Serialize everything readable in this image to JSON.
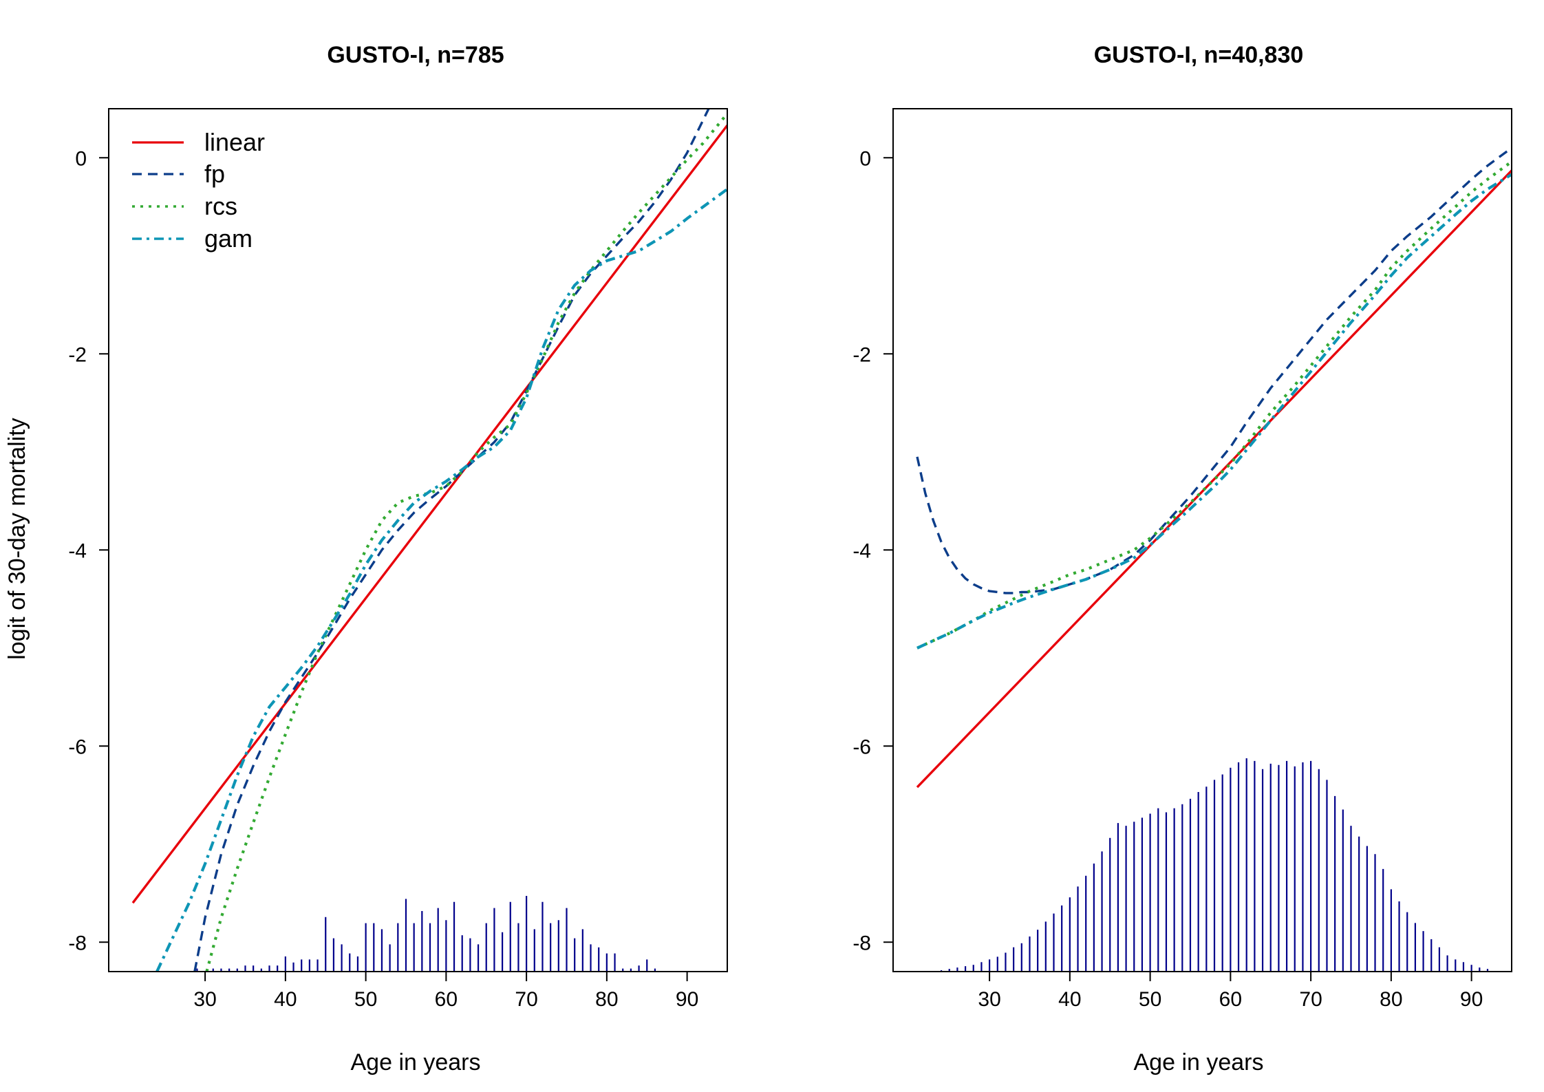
{
  "chart_data": [
    {
      "type": "line",
      "title": "GUSTO-I, n=785",
      "xlabel": "Age in years",
      "ylabel": "logit of 30-day mortality",
      "xlim": [
        18,
        95
      ],
      "ylim": [
        -8.3,
        0.5
      ],
      "xticks": [
        30,
        40,
        50,
        60,
        70,
        80,
        90
      ],
      "yticks": [
        0,
        -2,
        -4,
        -6,
        -8
      ],
      "grid": false,
      "legend": {
        "position": "top-left",
        "entries": [
          "linear",
          "fp",
          "rcs",
          "gam"
        ]
      },
      "series": [
        {
          "name": "linear",
          "color": "#e8000b",
          "dash": "solid",
          "x": [
            21,
            95
          ],
          "y": [
            -7.6,
            0.33
          ]
        },
        {
          "name": "fp",
          "color": "#0c3d8a",
          "dash": "dashed",
          "x": [
            28.7,
            30,
            32,
            34,
            36,
            38,
            40,
            42,
            44,
            46,
            48,
            50,
            52,
            54,
            56,
            58,
            60,
            62,
            64,
            66,
            68,
            70,
            72,
            74,
            76,
            78,
            80,
            82,
            84,
            86,
            88,
            90,
            92.8
          ],
          "y": [
            -8.3,
            -7.75,
            -7.1,
            -6.6,
            -6.2,
            -5.85,
            -5.55,
            -5.3,
            -5.05,
            -4.78,
            -4.5,
            -4.25,
            -4.0,
            -3.8,
            -3.62,
            -3.48,
            -3.35,
            -3.2,
            -3.05,
            -2.9,
            -2.7,
            -2.38,
            -2.05,
            -1.72,
            -1.4,
            -1.18,
            -1.0,
            -0.82,
            -0.65,
            -0.45,
            -0.22,
            0.05,
            0.52
          ]
        },
        {
          "name": "rcs",
          "color": "#33aa33",
          "dash": "dotted",
          "x": [
            30.2,
            32,
            34,
            36,
            38,
            40,
            42,
            44,
            46,
            48,
            50,
            52,
            54,
            56,
            58,
            60,
            62,
            64,
            66,
            68,
            70,
            72,
            74,
            76,
            78,
            80,
            82,
            84,
            86,
            88,
            90,
            92,
            95
          ],
          "y": [
            -8.3,
            -7.75,
            -7.25,
            -6.78,
            -6.32,
            -5.88,
            -5.45,
            -5.05,
            -4.7,
            -4.35,
            -4.0,
            -3.7,
            -3.52,
            -3.45,
            -3.42,
            -3.35,
            -3.2,
            -3.0,
            -2.85,
            -2.72,
            -2.4,
            -2.05,
            -1.68,
            -1.38,
            -1.15,
            -0.95,
            -0.75,
            -0.56,
            -0.38,
            -0.2,
            -0.02,
            0.15,
            0.45
          ]
        },
        {
          "name": "gam",
          "color": "#0e95b5",
          "dash": "dashdot",
          "x": [
            24,
            26,
            28,
            30,
            32,
            34,
            36,
            38,
            40,
            42,
            44,
            46,
            48,
            50,
            52,
            54,
            56,
            58,
            60,
            62,
            64,
            66,
            68,
            70,
            72,
            74,
            76,
            78,
            80,
            82,
            84,
            86,
            88,
            90,
            92,
            95
          ],
          "y": [
            -8.3,
            -7.95,
            -7.6,
            -7.2,
            -6.75,
            -6.3,
            -5.9,
            -5.6,
            -5.4,
            -5.2,
            -4.98,
            -4.72,
            -4.45,
            -4.15,
            -3.9,
            -3.7,
            -3.52,
            -3.4,
            -3.3,
            -3.18,
            -3.05,
            -2.95,
            -2.78,
            -2.45,
            -1.95,
            -1.55,
            -1.3,
            -1.15,
            -1.05,
            -1.0,
            -0.95,
            -0.85,
            -0.75,
            -0.62,
            -0.5,
            -0.32
          ]
        }
      ],
      "histogram": {
        "color": "#00008b",
        "x": [
          29,
          31,
          32,
          33,
          34,
          35,
          36,
          37,
          38,
          39,
          40,
          41,
          42,
          43,
          44,
          45,
          46,
          47,
          48,
          49,
          50,
          51,
          52,
          53,
          54,
          55,
          56,
          57,
          58,
          59,
          60,
          61,
          62,
          63,
          64,
          65,
          66,
          67,
          68,
          69,
          70,
          71,
          72,
          73,
          74,
          75,
          76,
          77,
          78,
          79,
          80,
          81,
          82,
          83,
          84,
          85,
          86
        ],
        "counts": [
          1,
          1,
          1,
          1,
          1,
          2,
          2,
          1,
          2,
          2,
          5,
          3,
          4,
          4,
          4,
          18,
          11,
          9,
          6,
          5,
          16,
          16,
          14,
          9,
          16,
          24,
          16,
          20,
          16,
          21,
          17,
          23,
          12,
          11,
          9,
          16,
          21,
          13,
          23,
          16,
          25,
          14,
          23,
          16,
          17,
          21,
          11,
          14,
          9,
          8,
          6,
          6,
          1,
          1,
          2,
          4,
          1
        ],
        "max_count": 25
      }
    },
    {
      "type": "line",
      "title": "GUSTO-I, n=40,830",
      "xlabel": "Age in years",
      "ylabel": "",
      "xlim": [
        18,
        95
      ],
      "ylim": [
        -8.3,
        0.5
      ],
      "xticks": [
        30,
        40,
        50,
        60,
        70,
        80,
        90
      ],
      "yticks": [
        0,
        -2,
        -4,
        -6,
        -8
      ],
      "grid": false,
      "legend": null,
      "series": [
        {
          "name": "linear",
          "color": "#e8000b",
          "dash": "solid",
          "x": [
            21,
            95
          ],
          "y": [
            -6.42,
            -0.13
          ]
        },
        {
          "name": "fp",
          "color": "#0c3d8a",
          "dash": "dashed",
          "x": [
            21,
            22,
            23,
            24,
            25,
            26,
            27,
            28,
            29,
            30,
            31,
            32,
            33,
            34,
            35,
            36,
            38,
            40,
            42,
            45,
            48,
            50,
            52,
            55,
            58,
            60,
            62,
            65,
            68,
            70,
            72,
            75,
            78,
            80,
            82,
            85,
            88,
            90,
            92,
            95
          ],
          "y": [
            -3.05,
            -3.42,
            -3.7,
            -3.92,
            -4.08,
            -4.2,
            -4.29,
            -4.35,
            -4.39,
            -4.42,
            -4.43,
            -4.44,
            -4.44,
            -4.43,
            -4.43,
            -4.42,
            -4.4,
            -4.35,
            -4.3,
            -4.2,
            -4.05,
            -3.9,
            -3.72,
            -3.45,
            -3.15,
            -2.95,
            -2.7,
            -2.35,
            -2.05,
            -1.85,
            -1.65,
            -1.4,
            -1.15,
            -0.95,
            -0.8,
            -0.6,
            -0.37,
            -0.22,
            -0.08,
            0.1
          ]
        },
        {
          "name": "rcs",
          "color": "#33aa33",
          "dash": "dotted",
          "x": [
            21,
            25,
            28,
            30,
            33,
            35,
            38,
            40,
            42,
            45,
            48,
            50,
            52,
            55,
            58,
            60,
            62,
            65,
            68,
            70,
            72,
            75,
            78,
            80,
            82,
            85,
            88,
            90,
            92,
            95
          ],
          "y": [
            -5.0,
            -4.85,
            -4.72,
            -4.62,
            -4.5,
            -4.42,
            -4.32,
            -4.25,
            -4.2,
            -4.1,
            -4.0,
            -3.88,
            -3.74,
            -3.52,
            -3.28,
            -3.12,
            -2.92,
            -2.6,
            -2.32,
            -2.12,
            -1.92,
            -1.62,
            -1.35,
            -1.12,
            -0.95,
            -0.72,
            -0.5,
            -0.35,
            -0.22,
            -0.04
          ]
        },
        {
          "name": "gam",
          "color": "#0e95b5",
          "dash": "dashdot",
          "x": [
            21,
            25,
            28,
            30,
            33,
            35,
            38,
            40,
            42,
            45,
            48,
            50,
            52,
            55,
            58,
            60,
            62,
            65,
            68,
            70,
            72,
            75,
            78,
            80,
            82,
            85,
            88,
            90,
            92,
            95
          ],
          "y": [
            -5.0,
            -4.85,
            -4.72,
            -4.64,
            -4.54,
            -4.48,
            -4.4,
            -4.35,
            -4.3,
            -4.2,
            -4.08,
            -3.95,
            -3.8,
            -3.58,
            -3.35,
            -3.18,
            -2.98,
            -2.68,
            -2.38,
            -2.18,
            -1.98,
            -1.68,
            -1.4,
            -1.2,
            -1.02,
            -0.8,
            -0.58,
            -0.44,
            -0.32,
            -0.17
          ]
        }
      ],
      "histogram": {
        "color": "#00008b",
        "x": [
          24,
          25,
          26,
          27,
          28,
          29,
          30,
          31,
          32,
          33,
          34,
          35,
          36,
          37,
          38,
          39,
          40,
          41,
          42,
          43,
          44,
          45,
          46,
          47,
          48,
          49,
          50,
          51,
          52,
          53,
          54,
          55,
          56,
          57,
          58,
          59,
          60,
          61,
          62,
          63,
          64,
          65,
          66,
          67,
          68,
          69,
          70,
          71,
          72,
          73,
          74,
          75,
          76,
          77,
          78,
          79,
          80,
          81,
          82,
          83,
          84,
          85,
          86,
          87,
          88,
          89,
          90,
          91,
          92
        ],
        "counts": [
          1,
          2,
          3,
          4,
          5,
          7,
          9,
          11,
          14,
          18,
          21,
          26,
          31,
          37,
          43,
          49,
          55,
          63,
          71,
          80,
          89,
          99,
          110,
          108,
          111,
          114,
          117,
          121,
          118,
          121,
          124,
          128,
          133,
          137,
          142,
          146,
          151,
          155,
          158,
          156,
          150,
          154,
          153,
          156,
          152,
          155,
          156,
          150,
          142,
          130,
          120,
          108,
          100,
          93,
          87,
          76,
          61,
          52,
          44,
          36,
          30,
          24,
          18,
          12,
          9,
          7,
          5,
          3,
          2
        ],
        "max_count": 158
      }
    }
  ]
}
